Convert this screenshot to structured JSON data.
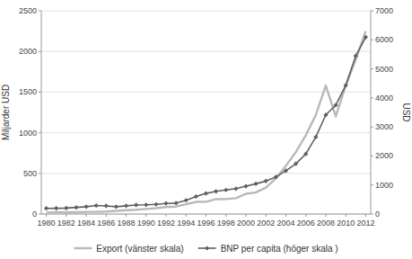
{
  "chart_data": {
    "type": "line",
    "x": [
      1980,
      1981,
      1982,
      1983,
      1984,
      1985,
      1986,
      1987,
      1988,
      1989,
      1990,
      1991,
      1992,
      1993,
      1994,
      1995,
      1996,
      1997,
      1998,
      1999,
      2000,
      2001,
      2002,
      2003,
      2004,
      2005,
      2006,
      2007,
      2008,
      2009,
      2010,
      2011,
      2012
    ],
    "series": [
      {
        "name": "Export (vänster skala)",
        "color": "#b8b8b8",
        "axis": "y",
        "values": [
          18,
          22,
          22,
          22,
          26,
          27,
          31,
          39,
          47,
          52,
          62,
          72,
          85,
          92,
          121,
          149,
          151,
          183,
          184,
          195,
          249,
          266,
          325,
          438,
          593,
          762,
          969,
          1218,
          1581,
          1202,
          1578,
          1899,
          2249
        ]
      },
      {
        "name": "BNP per capita (höger skala )",
        "color": "#606060",
        "axis": "y2",
        "marker": "diamond",
        "values": [
          195,
          198,
          204,
          228,
          253,
          293,
          281,
          252,
          284,
          311,
          317,
          333,
          366,
          377,
          473,
          604,
          709,
          780,
          828,
          873,
          959,
          1042,
          1135,
          1274,
          1490,
          1731,
          2069,
          2651,
          3414,
          3749,
          4433,
          5445,
          6091
        ]
      }
    ],
    "ylabel": "Miljarder USD",
    "y2label": "USD",
    "xlim": [
      1979.5,
      2012.5
    ],
    "xticks": [
      1980,
      1982,
      1984,
      1986,
      1988,
      1990,
      1992,
      1994,
      1996,
      1998,
      2000,
      2002,
      2004,
      2006,
      2008,
      2010,
      2012
    ],
    "ylim": [
      0,
      2500
    ],
    "yticks": [
      0,
      500,
      1000,
      1500,
      2000,
      2500
    ],
    "y2lim": [
      0,
      7000
    ],
    "y2ticks": [
      0,
      1000,
      2000,
      3000,
      4000,
      5000,
      6000,
      7000
    ],
    "grid": true,
    "legend": "bottom"
  }
}
